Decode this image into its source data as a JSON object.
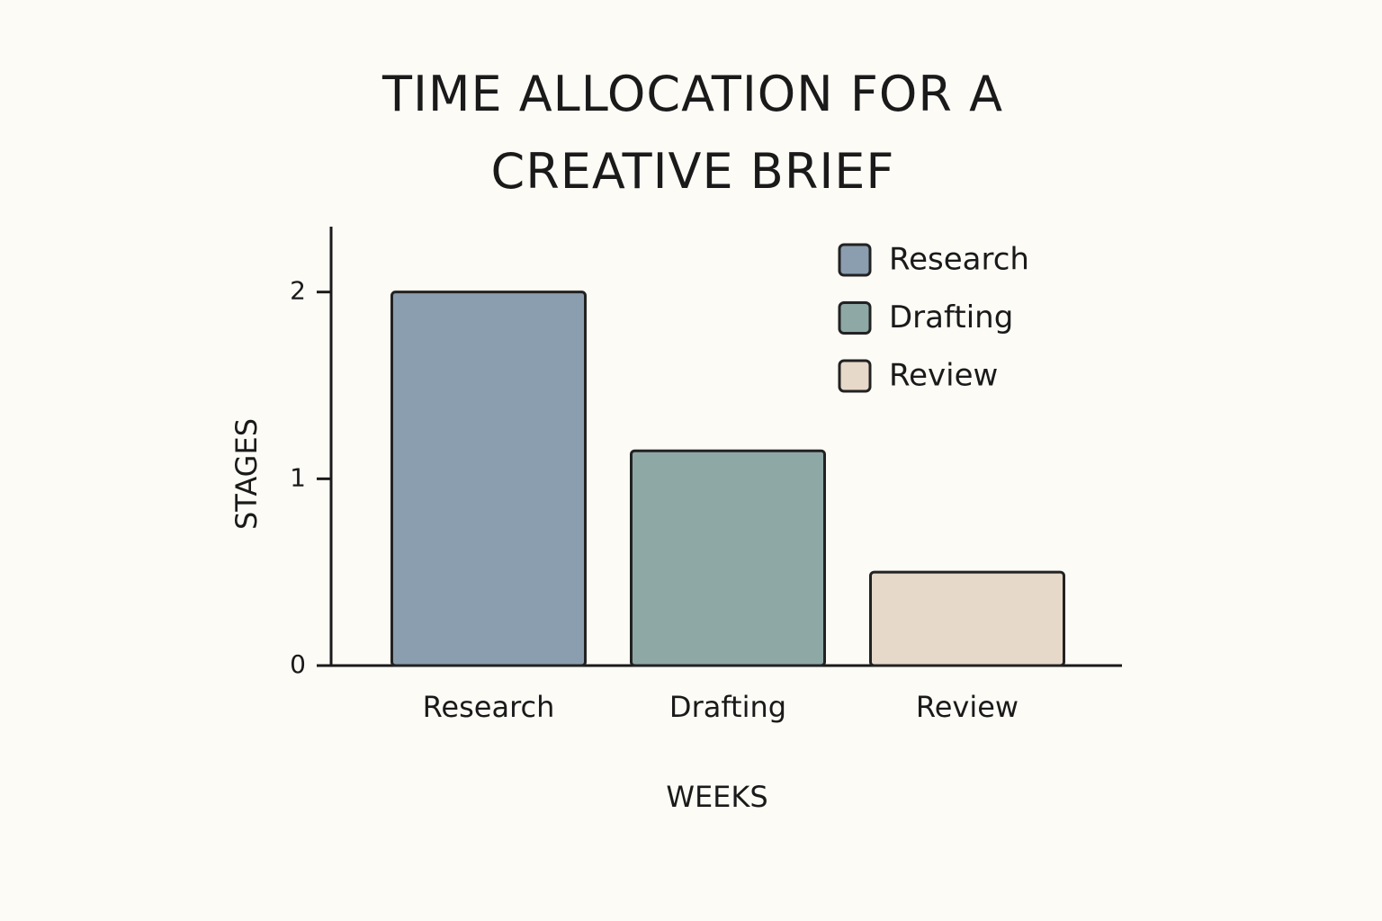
{
  "chart_data": {
    "type": "bar",
    "title": "TIME ALLOCATION FOR A CREATIVE BRIEF",
    "x_label": "WEEKS",
    "y_label": "STAGES",
    "categories": [
      "Research",
      "Drafting",
      "Review"
    ],
    "values": [
      2,
      1.15,
      0.5
    ],
    "colors": [
      "#8a9eaf",
      "#8ea8a6",
      "#e6d9c9"
    ],
    "ylim": [
      0,
      2.35
    ],
    "yticks": [
      0,
      1,
      2
    ],
    "legend": "top-right"
  }
}
